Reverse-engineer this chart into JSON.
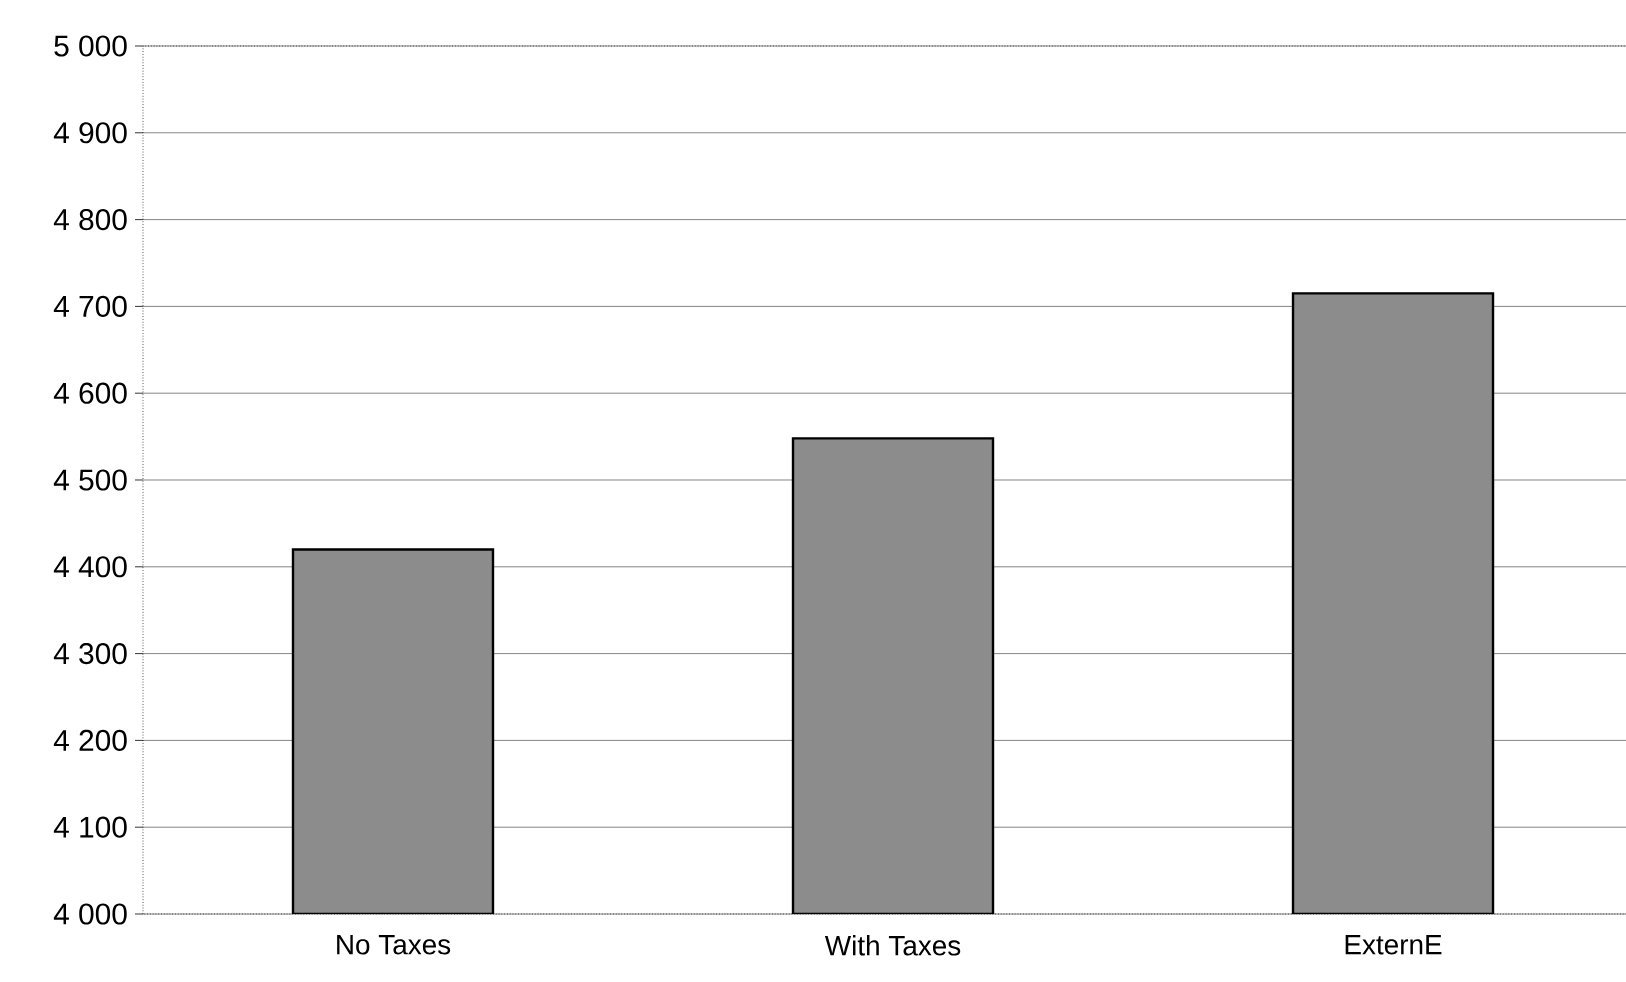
{
  "chart_data": {
    "type": "bar",
    "categories": [
      "No Taxes",
      "With Taxes",
      "ExternE"
    ],
    "values": [
      4420,
      4548,
      4715
    ],
    "color": "#8c8c8c",
    "ylim": [
      4000,
      5000
    ],
    "yticks": [
      {
        "value": 4000,
        "label": "4 000"
      },
      {
        "value": 4100,
        "label": "4 100"
      },
      {
        "value": 4200,
        "label": "4 200"
      },
      {
        "value": 4300,
        "label": "4 300"
      },
      {
        "value": 4400,
        "label": "4 400"
      },
      {
        "value": 4500,
        "label": "4 500"
      },
      {
        "value": 4600,
        "label": "4 600"
      },
      {
        "value": 4700,
        "label": "4 700"
      },
      {
        "value": 4800,
        "label": "4 800"
      },
      {
        "value": 4900,
        "label": "4 900"
      },
      {
        "value": 5000,
        "label": "5 000"
      }
    ],
    "grid": "y"
  }
}
